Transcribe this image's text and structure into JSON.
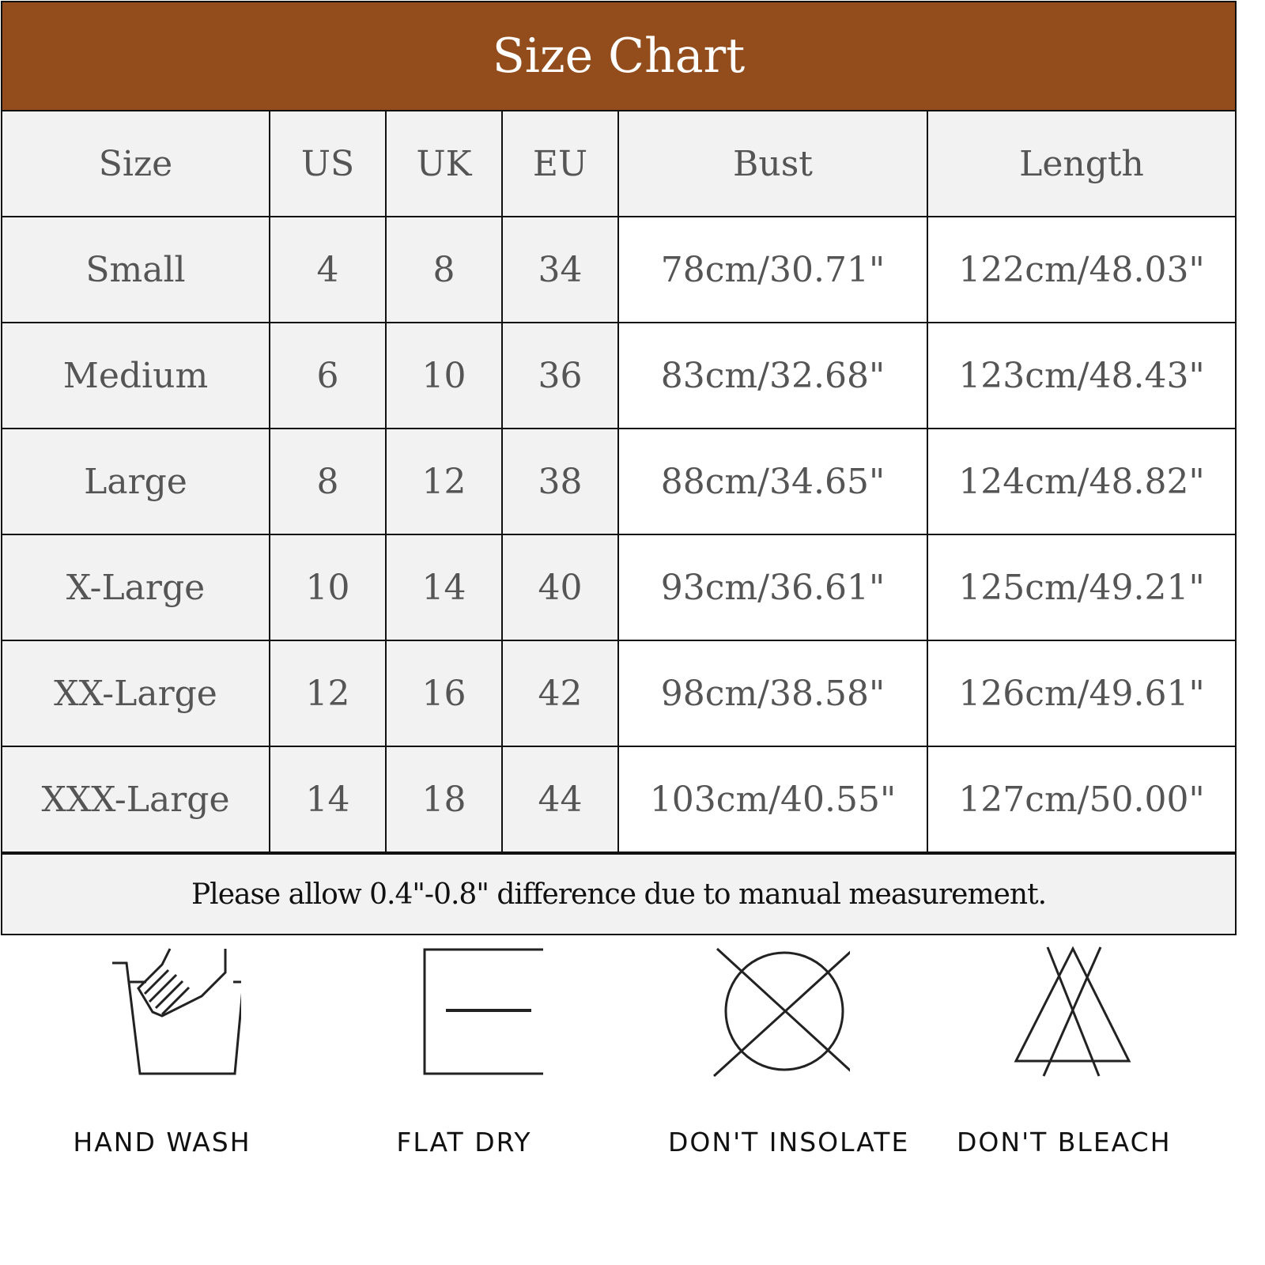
{
  "title": "Size Chart",
  "columns": [
    "Size",
    "US",
    "UK",
    "EU",
    "Bust",
    "Length"
  ],
  "rows": [
    [
      "Small",
      "4",
      "8",
      "34",
      "78cm/30.71\"",
      "122cm/48.03\""
    ],
    [
      "Medium",
      "6",
      "10",
      "36",
      "83cm/32.68\"",
      "123cm/48.43\""
    ],
    [
      "Large",
      "8",
      "12",
      "38",
      "88cm/34.65\"",
      "124cm/48.82\""
    ],
    [
      "X-Large",
      "10",
      "14",
      "40",
      "93cm/36.61\"",
      "125cm/49.21\""
    ],
    [
      "XX-Large",
      "12",
      "16",
      "42",
      "98cm/38.58\"",
      "126cm/49.61\""
    ],
    [
      "XXX-Large",
      "14",
      "18",
      "44",
      "103cm/40.55\"",
      "127cm/50.00\""
    ]
  ],
  "note": "Please allow 0.4\"-0.8\" difference due to manual measurement.",
  "care": [
    {
      "icon": "hand-wash-icon",
      "label": "HAND WASH"
    },
    {
      "icon": "flat-dry-icon",
      "label": "FLAT  DRY"
    },
    {
      "icon": "dont-insolate-icon",
      "label": "DON'T INSOLATE"
    },
    {
      "icon": "dont-bleach-icon",
      "label": "DON'T BLEACH"
    }
  ],
  "colors": {
    "header": "#934d1d",
    "cell_gray": "#f2f2f2",
    "text": "#555555"
  }
}
